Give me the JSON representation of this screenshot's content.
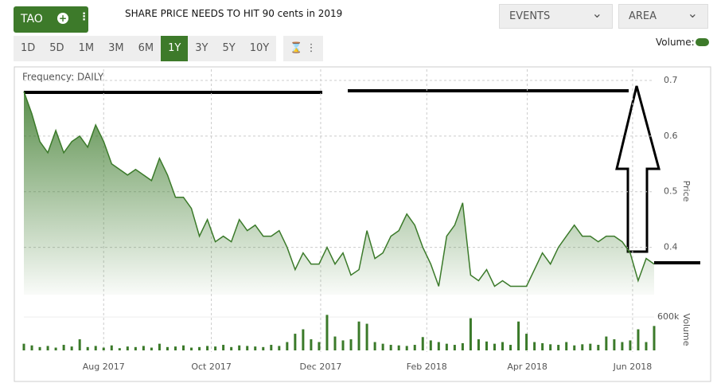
{
  "ui": {
    "symbol": "TAO",
    "ranges": [
      "1D",
      "5D",
      "1M",
      "3M",
      "6M",
      "1Y",
      "3Y",
      "5Y",
      "10Y"
    ],
    "selected_range": 5,
    "dropdowns": [
      "EVENTS",
      "AREA"
    ],
    "volume_toggle": "Volume:"
  },
  "chart_data": {
    "type": "area",
    "title": "SHARE PRICE NEEDS TO HIT 90 cents in 2019",
    "subtitle": "Frequency: DAILY",
    "y_label": "Price",
    "color": "#3b7a2a",
    "grid": true,
    "xlim": [
      0,
      79
    ],
    "xticks": [
      {
        "value": 10,
        "label": "Aug 2017"
      },
      {
        "value": 23.5,
        "label": "Oct 2017"
      },
      {
        "value": 37.2,
        "label": "Dec 2017"
      },
      {
        "value": 50.5,
        "label": "Feb 2018"
      },
      {
        "value": 63.1,
        "label": "Apr 2018"
      },
      {
        "value": 76.3,
        "label": "Jun 2018"
      }
    ],
    "ylim": [
      0.315,
      0.72
    ],
    "yticks": [
      0.4,
      0.5,
      0.6,
      0.7
    ],
    "values": [
      0.68,
      0.64,
      0.59,
      0.57,
      0.61,
      0.57,
      0.59,
      0.6,
      0.58,
      0.62,
      0.59,
      0.55,
      0.54,
      0.53,
      0.54,
      0.53,
      0.52,
      0.56,
      0.53,
      0.49,
      0.49,
      0.47,
      0.42,
      0.45,
      0.41,
      0.42,
      0.41,
      0.45,
      0.43,
      0.44,
      0.42,
      0.42,
      0.43,
      0.4,
      0.36,
      0.39,
      0.37,
      0.37,
      0.4,
      0.37,
      0.39,
      0.35,
      0.36,
      0.43,
      0.38,
      0.39,
      0.42,
      0.43,
      0.46,
      0.44,
      0.4,
      0.37,
      0.33,
      0.42,
      0.44,
      0.48,
      0.35,
      0.34,
      0.36,
      0.33,
      0.34,
      0.33,
      0.33,
      0.33,
      0.36,
      0.39,
      0.37,
      0.4,
      0.42,
      0.44,
      0.42,
      0.42,
      0.41,
      0.42,
      0.42,
      0.41,
      0.39,
      0.34,
      0.38,
      0.37
    ],
    "volume": {
      "label": "Volume",
      "color": "#3b7a2a",
      "ylim": [
        0,
        660000
      ],
      "yticks": [
        {
          "value": 600000,
          "label": "600k"
        }
      ],
      "values": [
        120000,
        90000,
        60000,
        80000,
        50000,
        100000,
        70000,
        200000,
        60000,
        80000,
        50000,
        90000,
        40000,
        70000,
        60000,
        80000,
        50000,
        120000,
        60000,
        70000,
        90000,
        50000,
        60000,
        80000,
        70000,
        100000,
        60000,
        90000,
        80000,
        70000,
        60000,
        100000,
        80000,
        150000,
        300000,
        380000,
        200000,
        150000,
        640000,
        250000,
        180000,
        200000,
        520000,
        480000,
        150000,
        120000,
        100000,
        90000,
        80000,
        100000,
        240000,
        180000,
        150000,
        120000,
        100000,
        130000,
        580000,
        200000,
        160000,
        120000,
        150000,
        100000,
        520000,
        300000,
        150000,
        130000,
        110000,
        100000,
        150000,
        90000,
        110000,
        120000,
        100000,
        250000,
        200000,
        150000,
        180000,
        380000,
        150000,
        440000
      ]
    }
  }
}
